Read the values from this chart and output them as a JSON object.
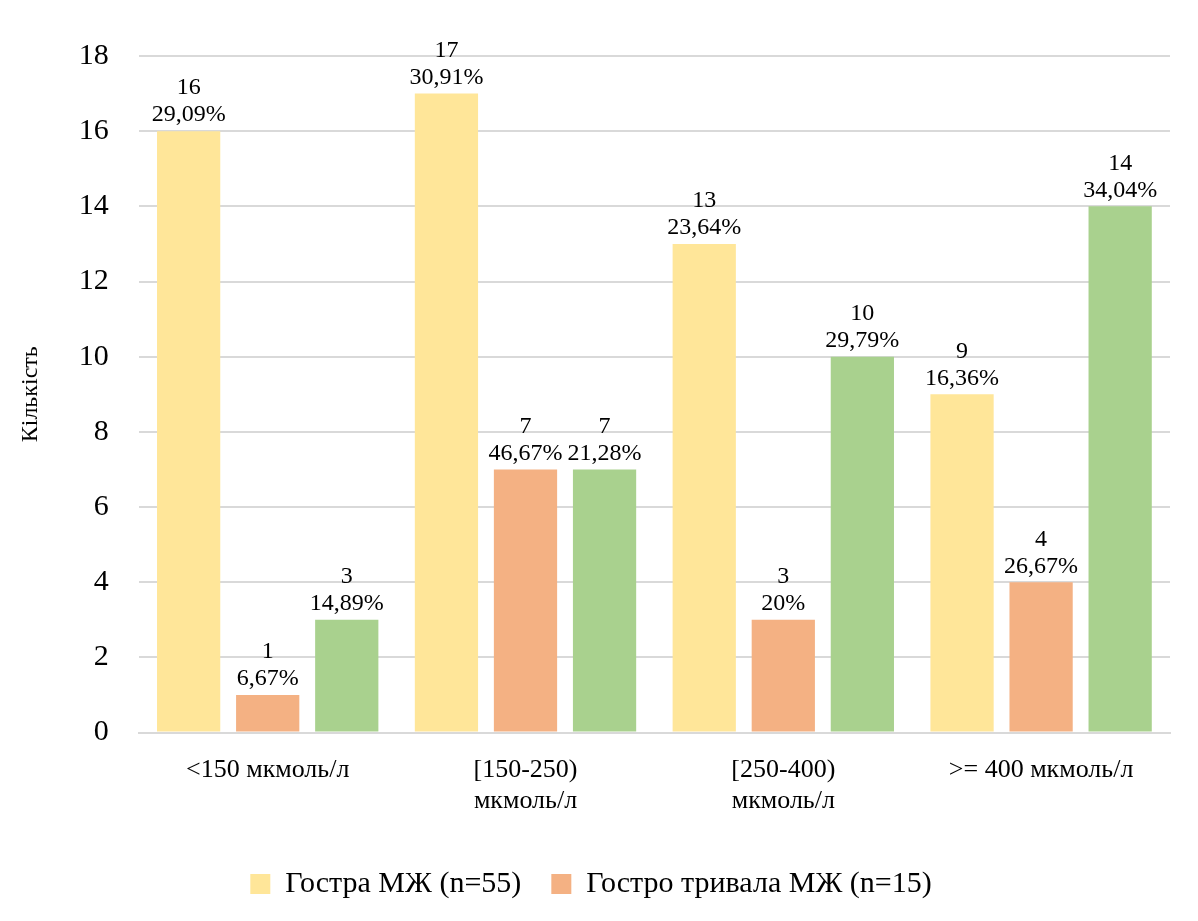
{
  "chart_data": {
    "type": "bar",
    "ylabel": "Кількість",
    "categories": [
      "<150 мкмоль/л",
      "[150-250) мкмоль/л",
      "[250-400) мкмоль/л",
      ">= 400 мкмоль/л"
    ],
    "series": [
      {
        "name": "Гостра МЖ (n=55)",
        "color": "#ffe699",
        "values": [
          16,
          17,
          13,
          9
        ],
        "value_labels": [
          "16\n29,09%",
          "17\n30,91%",
          "13\n23,64%",
          "9\n16,36%"
        ]
      },
      {
        "name": "Гостро тривала МЖ (n=15)",
        "color": "#f4b183",
        "values": [
          1,
          7,
          3,
          4
        ],
        "value_labels": [
          "1\n6,67%",
          "7\n46,67%",
          "3\n20%",
          "4\n26,67%"
        ]
      },
      {
        "color": "#a9d18e",
        "values": [
          3,
          7,
          10,
          14
        ],
        "value_labels": [
          "3\n14,89%",
          "7\n21,28%",
          "10\n29,79%",
          "14\n34,04%"
        ]
      }
    ],
    "ylim": [
      0,
      18
    ],
    "yticks": [
      0,
      2,
      4,
      6,
      8,
      10,
      12,
      14,
      16,
      18
    ],
    "grid": "y",
    "legend": "bottom"
  }
}
